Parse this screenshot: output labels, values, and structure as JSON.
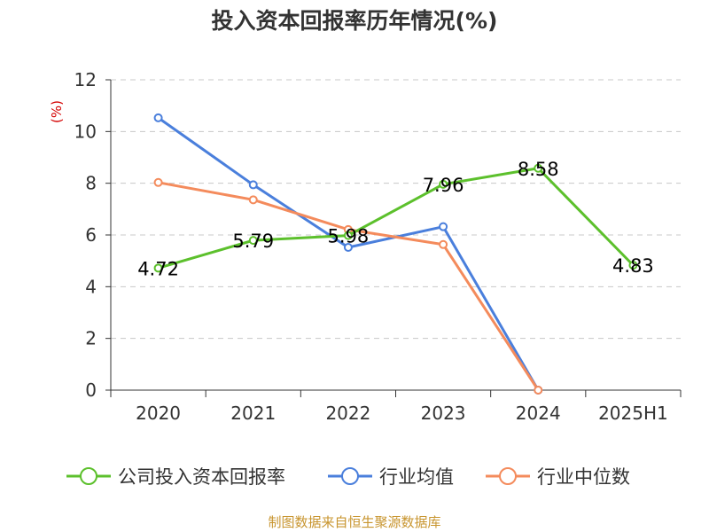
{
  "chart_data": {
    "type": "line",
    "title": "投入资本回报率历年情况(%)",
    "ylabel": "(%)",
    "xlabel": "",
    "ylim": [
      0,
      12
    ],
    "yticks": [
      0,
      2,
      4,
      6,
      8,
      10,
      12
    ],
    "categories": [
      "2020",
      "2021",
      "2022",
      "2023",
      "2024",
      "2025H1"
    ],
    "grid": true,
    "legend_position": "bottom",
    "series": [
      {
        "name": "公司投入资本回报率",
        "color": "#5cc02c",
        "values": [
          4.72,
          5.79,
          5.98,
          7.96,
          8.58,
          4.83
        ],
        "labels": [
          "4.72",
          "5.79",
          "5.98",
          "7.96",
          "8.58",
          "4.83"
        ]
      },
      {
        "name": "行业均值",
        "color": "#4a7fdc",
        "values": [
          10.53,
          7.94,
          5.52,
          6.32,
          0,
          null
        ]
      },
      {
        "name": "行业中位数",
        "color": "#f48b5c",
        "values": [
          8.03,
          7.36,
          6.21,
          5.63,
          0,
          null
        ]
      }
    ]
  },
  "source": "制图数据来自恒生聚源数据库"
}
